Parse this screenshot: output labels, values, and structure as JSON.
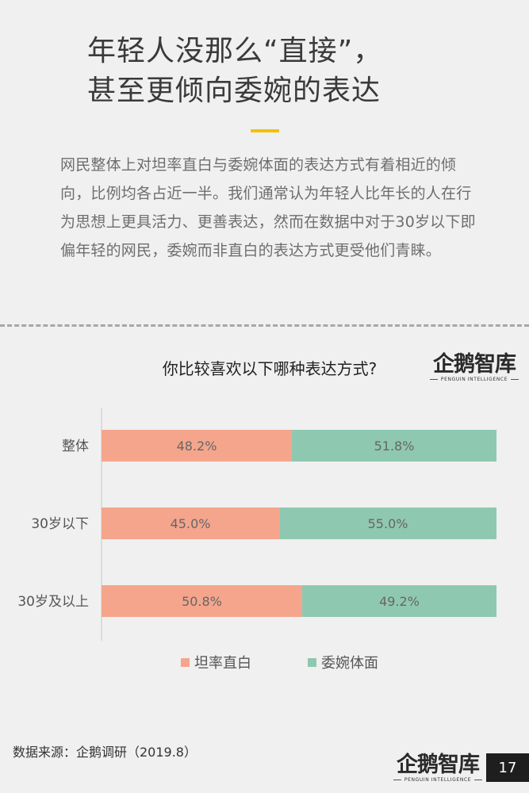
{
  "header": {
    "title_line1": "年轻人没那么“直接”，",
    "title_line2": "甚至更倾向委婉的表达",
    "intro": "网民整体上对坦率直白与委婉体面的表达方式有着相近的倾向，比例均各占近一半。我们通常认为年轻人比年长的人在行为思想上更具活力、更善表达，然而在数据中对于30岁以下即偏年轻的网民，委婉而非直白的表达方式更受他们青睐。"
  },
  "logo": {
    "main": "企鹅智库",
    "sub": "PENGUIN INTELLIGENCE"
  },
  "chart_data": {
    "type": "bar",
    "orientation": "horizontal",
    "stacked": true,
    "title": "你比较喜欢以下哪种表达方式?",
    "categories": [
      "整体",
      "30岁以下",
      "30岁及以上"
    ],
    "series": [
      {
        "name": "坦率直白",
        "values": [
          48.2,
          45.0,
          50.8
        ],
        "labels": [
          "48.2%",
          "45.0%",
          "50.8%"
        ],
        "color": "#f4a58c"
      },
      {
        "name": "委婉体面",
        "values": [
          51.8,
          55.0,
          49.2
        ],
        "labels": [
          "51.8%",
          "55.0%",
          "49.2%"
        ],
        "color": "#8fc8b1"
      }
    ],
    "xlim": [
      0,
      100
    ],
    "legend": "bottom",
    "grid": false
  },
  "footer": {
    "source": "数据来源：企鹅调研（2019.8）",
    "page": "17"
  }
}
